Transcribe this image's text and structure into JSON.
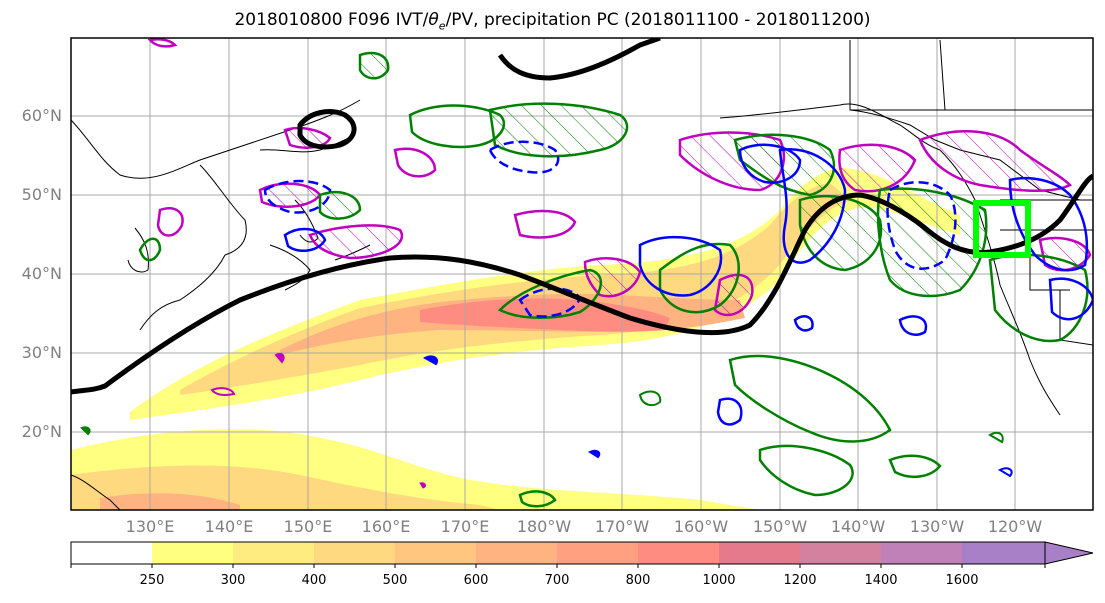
{
  "title": {
    "prefix": "2018010800 F096 IVT/",
    "theta": "θ",
    "sub": "e",
    "suffix": "/PV, precipitation PC (2018011100 - 2018011200)"
  },
  "lat_labels": [
    "60°N",
    "50°N",
    "40°N",
    "30°N",
    "20°N"
  ],
  "lon_labels": [
    "130°E",
    "140°E",
    "150°E",
    "160°E",
    "170°E",
    "180°W",
    "170°W",
    "160°W",
    "150°W",
    "140°W",
    "130°W",
    "120°W"
  ],
  "colorbar": {
    "ticks": [
      "250",
      "300",
      "400",
      "500",
      "600",
      "700",
      "800",
      "1000",
      "1200",
      "1400",
      "1600"
    ],
    "colors": [
      "#ffffff",
      "#ffff80",
      "#ffec80",
      "#ffd980",
      "#ffc680",
      "#ffb380",
      "#ffa080",
      "#ff8c80",
      "#e57a8c",
      "#d4809f",
      "#c080b8",
      "#a880c8"
    ]
  },
  "colors": {
    "theta_pv_contour": "#000000",
    "positive_pc": "#008000",
    "negative_pc": "#0000ff",
    "magenta_pc": "#c000c0",
    "target_box": "#00ff00"
  }
}
